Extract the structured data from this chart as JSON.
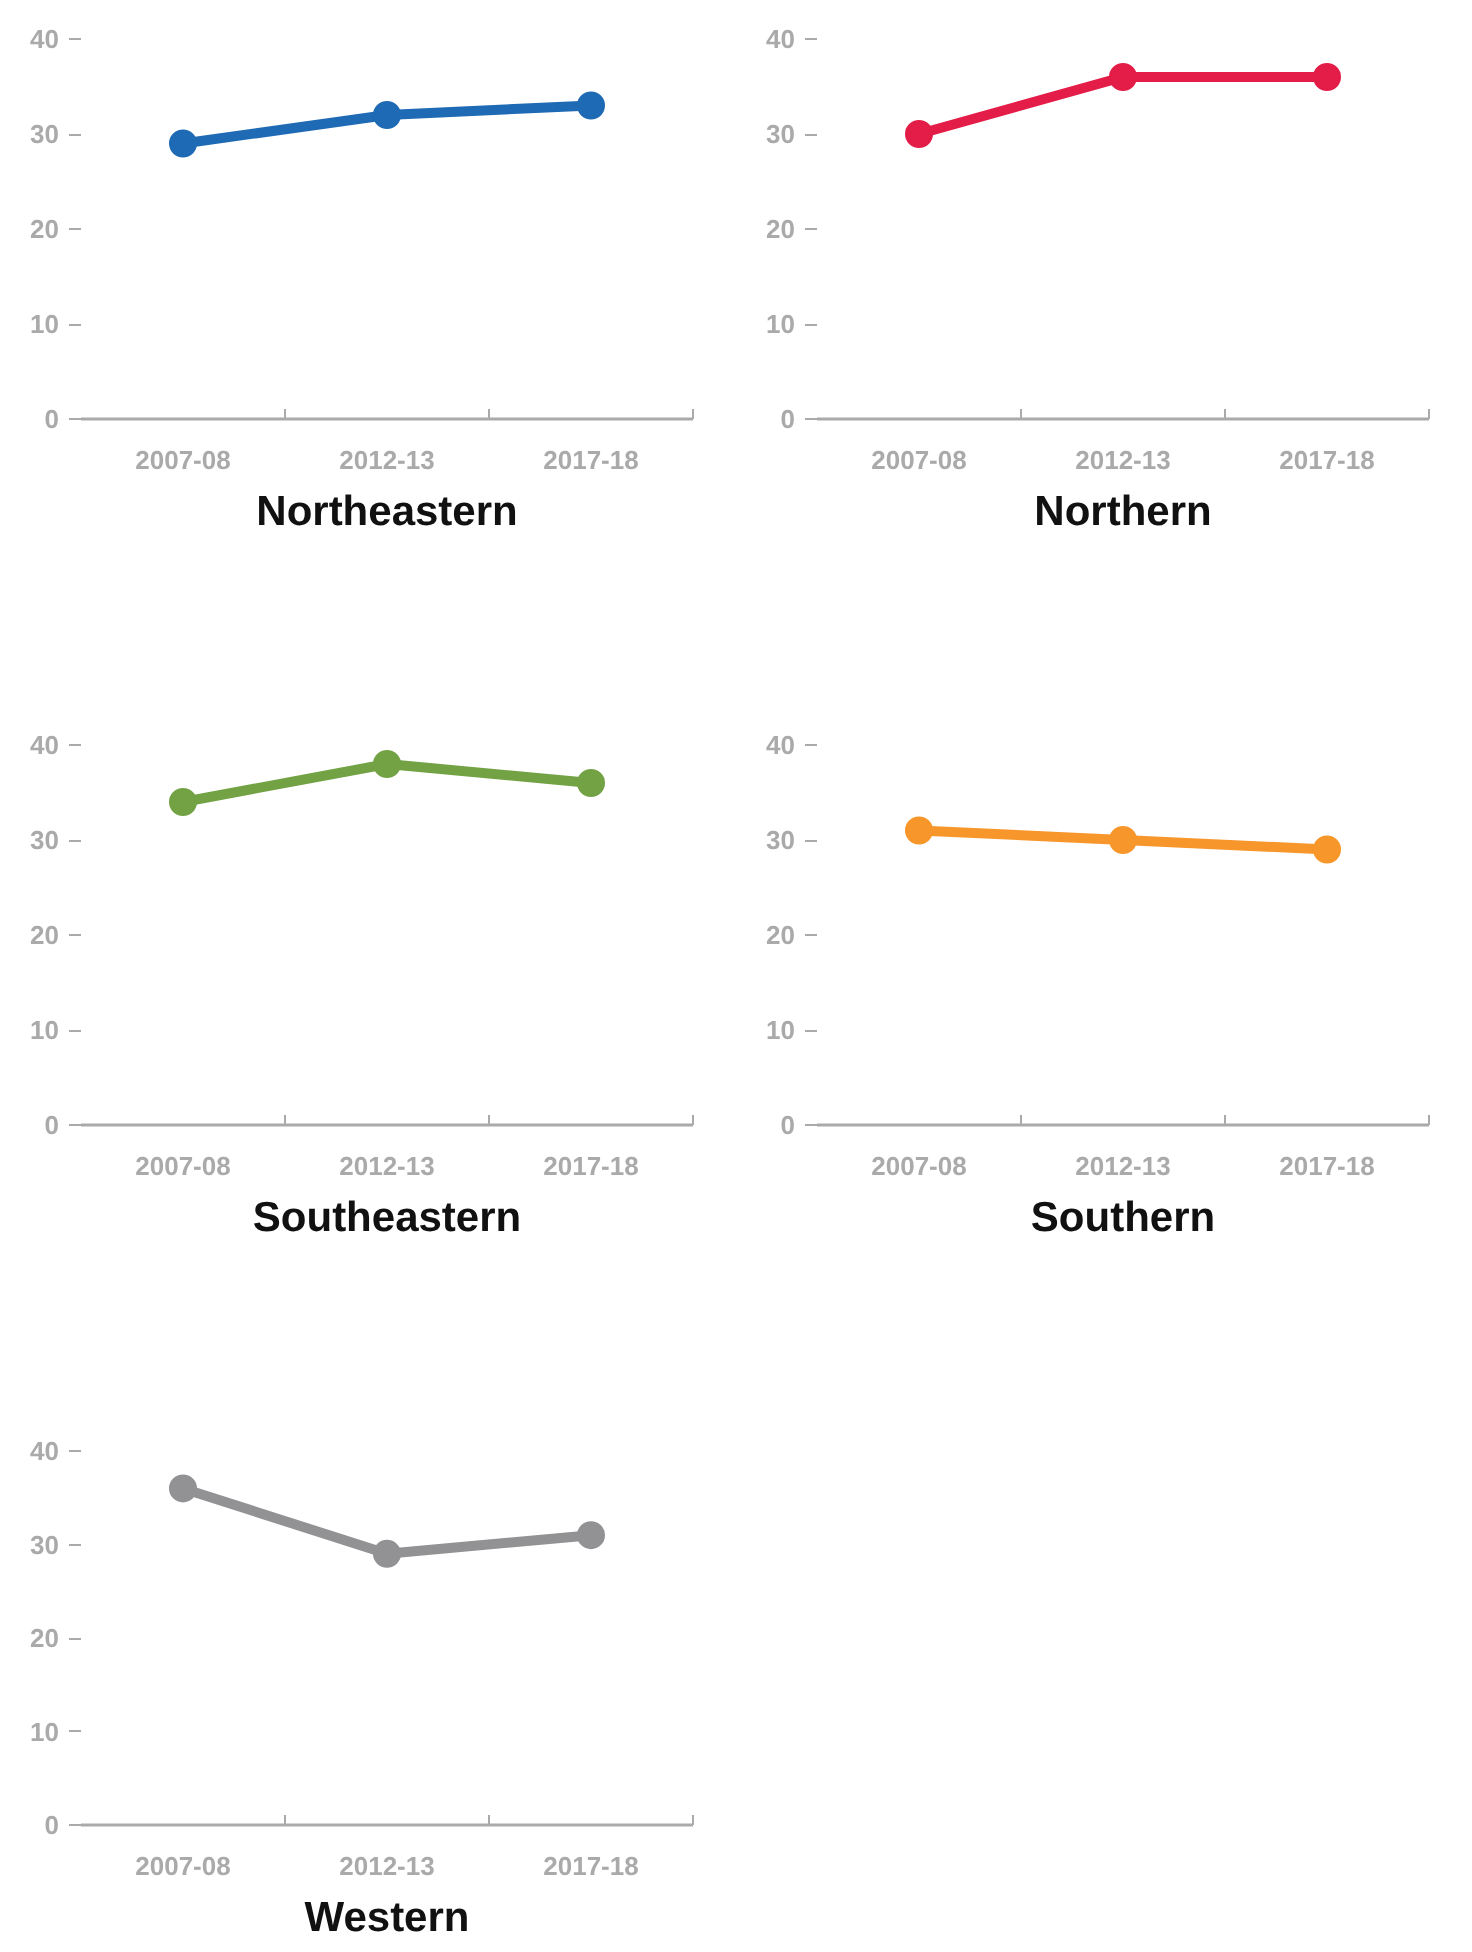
{
  "chart_data": [
    {
      "type": "line",
      "title": "Northeastern",
      "categories": [
        "2007-08",
        "2012-13",
        "2017-18"
      ],
      "series": [
        {
          "color": "#1f6ab4",
          "values": [
            29,
            32,
            33
          ]
        }
      ],
      "ylim": [
        0,
        40
      ],
      "yticks": [
        0,
        10,
        20,
        30,
        40
      ],
      "marker": "circle",
      "grid": false
    },
    {
      "type": "line",
      "title": "Northern",
      "categories": [
        "2007-08",
        "2012-13",
        "2017-18"
      ],
      "series": [
        {
          "color": "#e31d47",
          "values": [
            30,
            36,
            36
          ]
        }
      ],
      "ylim": [
        0,
        40
      ],
      "yticks": [
        0,
        10,
        20,
        30,
        40
      ],
      "marker": "circle",
      "grid": false
    },
    {
      "type": "line",
      "title": "Southeastern",
      "categories": [
        "2007-08",
        "2012-13",
        "2017-18"
      ],
      "series": [
        {
          "color": "#72a244",
          "values": [
            34,
            38,
            36
          ]
        }
      ],
      "ylim": [
        0,
        40
      ],
      "yticks": [
        0,
        10,
        20,
        30,
        40
      ],
      "marker": "circle",
      "grid": false
    },
    {
      "type": "line",
      "title": "Southern",
      "categories": [
        "2007-08",
        "2012-13",
        "2017-18"
      ],
      "series": [
        {
          "color": "#f7962a",
          "values": [
            31,
            30,
            29
          ]
        }
      ],
      "ylim": [
        0,
        40
      ],
      "yticks": [
        0,
        10,
        20,
        30,
        40
      ],
      "marker": "circle",
      "grid": false
    },
    {
      "type": "line",
      "title": "Western",
      "categories": [
        "2007-08",
        "2012-13",
        "2017-18"
      ],
      "series": [
        {
          "color": "#929295",
          "values": [
            36,
            29,
            31
          ]
        }
      ],
      "ylim": [
        0,
        40
      ],
      "yticks": [
        0,
        10,
        20,
        30,
        40
      ],
      "marker": "circle",
      "grid": false
    }
  ]
}
